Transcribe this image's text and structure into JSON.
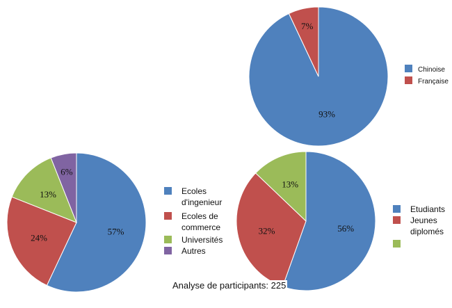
{
  "caption": "Analyse de participants: 225",
  "chart_data": [
    {
      "type": "pie",
      "slices": [
        {
          "label": "Chinoise",
          "value": 93,
          "text": "93%",
          "color": "#4f81bd"
        },
        {
          "label": "Française",
          "value": 7,
          "text": "7%",
          "color": "#c0504d"
        }
      ],
      "legend": {
        "position": "right",
        "entries": [
          "Chinoise",
          "Française"
        ]
      }
    },
    {
      "type": "pie",
      "slices": [
        {
          "label": "Ecoles d'ingenieur",
          "value": 57,
          "text": "57%",
          "color": "#4f81bd"
        },
        {
          "label": "Ecoles de commerce",
          "value": 24,
          "text": "24%",
          "color": "#c0504d"
        },
        {
          "label": "Universités",
          "value": 13,
          "text": "13%",
          "color": "#9bbb59"
        },
        {
          "label": "Autres",
          "value": 6,
          "text": "6%",
          "color": "#8064a2"
        }
      ],
      "legend": {
        "position": "right",
        "entries": [
          "Ecoles d'ingenieur",
          "Ecoles de commerce",
          "Universités",
          "Autres"
        ]
      }
    },
    {
      "type": "pie",
      "slices": [
        {
          "label": "Etudiants",
          "value": 56,
          "text": "56%",
          "color": "#4f81bd"
        },
        {
          "label": "Jeunes diplomés",
          "value": 32,
          "text": "32%",
          "color": "#c0504d"
        },
        {
          "label": "",
          "value": 13,
          "text": "13%",
          "color": "#9bbb59"
        }
      ],
      "legend": {
        "position": "right",
        "entries": [
          "Etudiants",
          "Jeunes diplomés",
          ""
        ]
      }
    }
  ]
}
